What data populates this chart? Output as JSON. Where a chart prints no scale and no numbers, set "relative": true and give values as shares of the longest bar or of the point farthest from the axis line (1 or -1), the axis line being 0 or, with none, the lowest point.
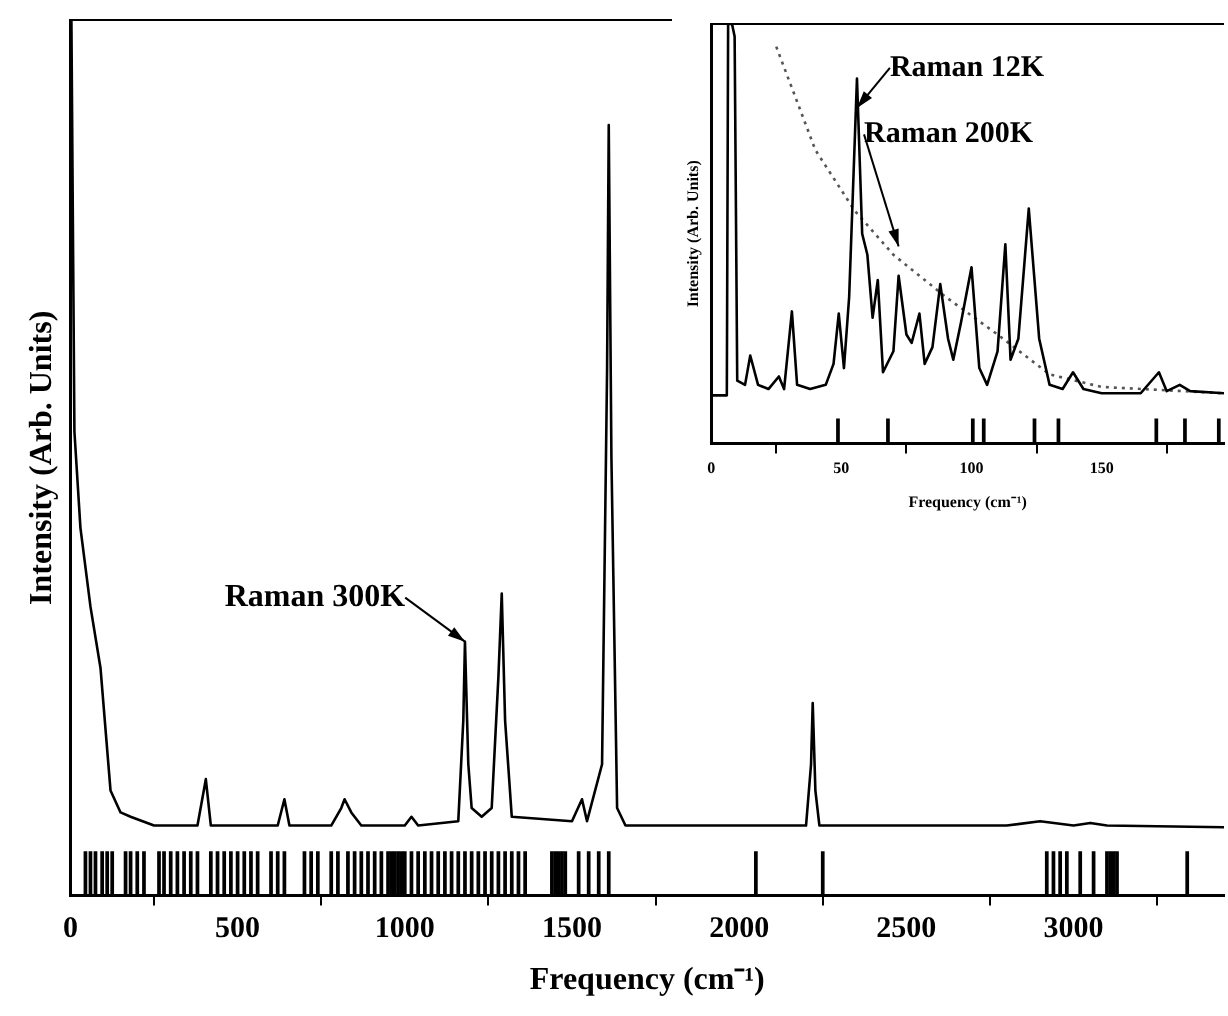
{
  "chart_data": [
    {
      "type": "line",
      "xlabel": "Frequency (cm⁻¹)",
      "ylabel": "Intensity (Arb. Units)",
      "relative": true,
      "xlim": [
        0,
        3450
      ],
      "xticks": [
        0,
        500,
        1000,
        1500,
        2000,
        2500,
        3000
      ],
      "grid": false,
      "legend": false,
      "marker": "none",
      "annotations": [
        {
          "text": "Raman 300K",
          "x": 1180,
          "y": 0.29
        }
      ],
      "series": [
        {
          "color": "#000000",
          "x": [
            3,
            12,
            30,
            60,
            90,
            120,
            150,
            180,
            250,
            380,
            405,
            420,
            620,
            640,
            655,
            780,
            810,
            820,
            840,
            870,
            1000,
            1020,
            1040,
            1160,
            1175,
            1180,
            1190,
            1200,
            1230,
            1260,
            1280,
            1290,
            1300,
            1320,
            1500,
            1530,
            1545,
            1590,
            1605,
            1610,
            1618,
            1635,
            1660,
            2200,
            2215,
            2220,
            2228,
            2240,
            2800,
            2900,
            3000,
            3050,
            3100,
            3450
          ],
          "values": [
            1.0,
            0.53,
            0.42,
            0.33,
            0.26,
            0.12,
            0.095,
            0.09,
            0.08,
            0.08,
            0.133,
            0.08,
            0.08,
            0.11,
            0.08,
            0.08,
            0.1,
            0.11,
            0.095,
            0.08,
            0.08,
            0.09,
            0.08,
            0.085,
            0.2,
            0.29,
            0.15,
            0.1,
            0.09,
            0.1,
            0.25,
            0.345,
            0.2,
            0.09,
            0.085,
            0.11,
            0.085,
            0.15,
            0.6,
            0.88,
            0.5,
            0.1,
            0.08,
            0.08,
            0.15,
            0.22,
            0.12,
            0.08,
            0.08,
            0.085,
            0.08,
            0.083,
            0.08,
            0.078
          ]
        },
        {
          "type": "bar",
          "color": "#000000",
          "x": [
            45,
            60,
            75,
            95,
            110,
            125,
            165,
            180,
            200,
            220,
            265,
            280,
            300,
            320,
            340,
            360,
            380,
            420,
            440,
            460,
            480,
            500,
            520,
            540,
            560,
            600,
            620,
            640,
            700,
            720,
            740,
            780,
            800,
            830,
            850,
            870,
            890,
            910,
            930,
            950,
            960,
            970,
            980,
            990,
            1000,
            1020,
            1040,
            1060,
            1080,
            1100,
            1120,
            1140,
            1160,
            1180,
            1200,
            1220,
            1240,
            1260,
            1280,
            1300,
            1320,
            1340,
            1360,
            1440,
            1450,
            1460,
            1470,
            1480,
            1520,
            1550,
            1580,
            1610,
            2050,
            2250,
            2920,
            2940,
            2960,
            2980,
            3020,
            3060,
            3100,
            3110,
            3120,
            3130,
            3340
          ],
          "values": [
            0.05,
            0.05,
            0.05,
            0.05,
            0.05,
            0.05,
            0.05,
            0.05,
            0.05,
            0.05,
            0.05,
            0.05,
            0.05,
            0.05,
            0.05,
            0.05,
            0.05,
            0.05,
            0.05,
            0.05,
            0.05,
            0.05,
            0.05,
            0.05,
            0.05,
            0.05,
            0.05,
            0.05,
            0.05,
            0.05,
            0.05,
            0.05,
            0.05,
            0.05,
            0.05,
            0.05,
            0.05,
            0.05,
            0.05,
            0.05,
            0.05,
            0.05,
            0.05,
            0.05,
            0.05,
            0.05,
            0.05,
            0.05,
            0.05,
            0.05,
            0.05,
            0.05,
            0.05,
            0.05,
            0.05,
            0.05,
            0.05,
            0.05,
            0.05,
            0.05,
            0.05,
            0.05,
            0.05,
            0.05,
            0.05,
            0.05,
            0.05,
            0.05,
            0.05,
            0.05,
            0.05,
            0.05,
            0.05,
            0.05,
            0.05,
            0.05,
            0.05,
            0.05,
            0.05,
            0.05,
            0.05,
            0.05,
            0.05,
            0.05,
            0.05
          ]
        }
      ]
    },
    {
      "type": "line",
      "xlabel": "Frequency (cm⁻¹)",
      "ylabel": "Intensity (Arb. Units)",
      "relative": true,
      "xlim": [
        0,
        197
      ],
      "xticks": [
        0,
        50,
        100,
        150
      ],
      "grid": false,
      "legend": false,
      "marker": "none",
      "annotations": [
        {
          "text": "Raman 12K",
          "x": 56,
          "y": 0.8
        },
        {
          "text": "Raman 200K",
          "x": 72,
          "y": 0.47
        }
      ],
      "series": [
        {
          "color": "#000000",
          "x": [
            0,
            6,
            6.5,
            8,
            9,
            10,
            13,
            15,
            18,
            22,
            26,
            28,
            31,
            33,
            38,
            44,
            47,
            49,
            51,
            53,
            56,
            58,
            60,
            62,
            64,
            66,
            70,
            72,
            75,
            77,
            80,
            82,
            85,
            88,
            91,
            93,
            96,
            100,
            103,
            106,
            110,
            113,
            115,
            118,
            122,
            126,
            130,
            135,
            139,
            143,
            150,
            165,
            172,
            175,
            180,
            184,
            197
          ],
          "values": [
            0.115,
            0.115,
            1.0,
            1.0,
            0.97,
            0.15,
            0.14,
            0.21,
            0.14,
            0.13,
            0.16,
            0.13,
            0.315,
            0.14,
            0.13,
            0.14,
            0.19,
            0.31,
            0.18,
            0.35,
            0.87,
            0.5,
            0.45,
            0.3,
            0.39,
            0.17,
            0.22,
            0.4,
            0.26,
            0.24,
            0.31,
            0.19,
            0.23,
            0.38,
            0.25,
            0.2,
            0.29,
            0.42,
            0.18,
            0.14,
            0.22,
            0.475,
            0.2,
            0.25,
            0.56,
            0.25,
            0.14,
            0.13,
            0.17,
            0.13,
            0.12,
            0.12,
            0.17,
            0.125,
            0.14,
            0.125,
            0.12
          ]
        },
        {
          "color": "#555555",
          "line_style": "dotted",
          "x": [
            25,
            40,
            55,
            70,
            90,
            110,
            130,
            150,
            197
          ],
          "values": [
            0.946,
            0.7,
            0.556,
            0.45,
            0.35,
            0.26,
            0.165,
            0.135,
            0.12
          ]
        },
        {
          "type": "bar",
          "color": "#000000",
          "x": [
            48.7,
            67.9,
            100.5,
            104.7,
            124.2,
            133.4,
            171,
            182,
            195
          ],
          "values": [
            0.058,
            0.058,
            0.058,
            0.058,
            0.058,
            0.058,
            0.058,
            0.058,
            0.058
          ]
        }
      ]
    }
  ]
}
